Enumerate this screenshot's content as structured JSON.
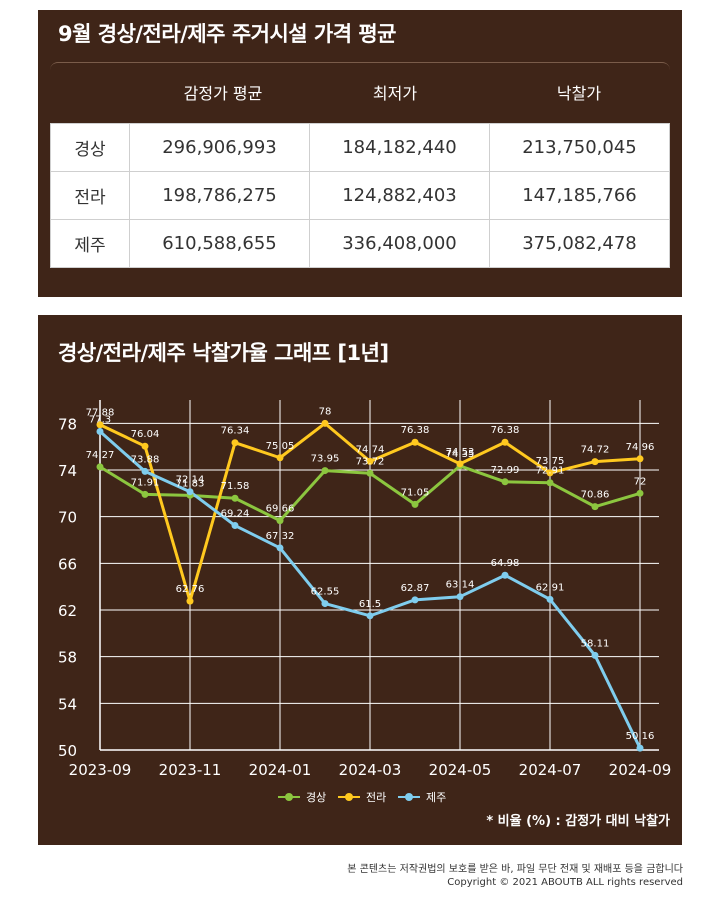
{
  "price_table": {
    "title": "9월 경상/전라/제주 주거시설 가격 평균",
    "headers": [
      "감정가 평균",
      "최저가",
      "낙찰가"
    ],
    "rows": [
      {
        "region": "경상",
        "cells": [
          "296,906,993",
          "184,182,440",
          "213,750,045"
        ]
      },
      {
        "region": "전라",
        "cells": [
          "198,786,275",
          "124,882,403",
          "147,185,766"
        ]
      },
      {
        "region": "제주",
        "cells": [
          "610,588,655",
          "336,408,000",
          "375,082,478"
        ]
      }
    ]
  },
  "chart_data": {
    "type": "line",
    "title": "경상/전라/제주 낙찰가율 그래프 [1년]",
    "xlabel": "",
    "ylabel": "",
    "x": [
      "2023-09",
      "2023-10",
      "2023-11",
      "2023-12",
      "2024-01",
      "2024-02",
      "2024-03",
      "2024-04",
      "2024-05",
      "2024-06",
      "2024-07",
      "2024-08",
      "2024-09"
    ],
    "x_tick_labels": [
      "2023-09",
      "2023-11",
      "2024-01",
      "2024-03",
      "2024-05",
      "2024-07",
      "2024-09"
    ],
    "y_ticks": [
      50,
      54,
      58,
      62,
      66,
      70,
      74,
      78
    ],
    "ylim": [
      50,
      80
    ],
    "grid": true,
    "legend_position": "bottom",
    "series": [
      {
        "name": "경상",
        "color": "#8cc63f",
        "values": [
          74.27,
          71.91,
          71.83,
          71.58,
          69.66,
          73.95,
          73.72,
          71.05,
          74.35,
          72.99,
          72.91,
          70.86,
          72
        ],
        "labels": [
          "74.27",
          "71.91",
          "71.83",
          "71.58",
          "69.66",
          "73.95",
          "73.72",
          "71.05",
          "74.35",
          "72.99",
          "72.91",
          "70.86",
          "72"
        ]
      },
      {
        "name": "전라",
        "color": "#ffc91f",
        "values": [
          77.88,
          76.04,
          62.76,
          76.34,
          75.05,
          78,
          74.74,
          76.38,
          74.53,
          76.38,
          73.75,
          74.72,
          74.96
        ],
        "labels": [
          "77.88",
          "76.04",
          "62.76",
          "76.34",
          "75.05",
          "78",
          "74.74",
          "76.38",
          "74.53",
          "76.38",
          "73.75",
          "74.72",
          "74.96"
        ]
      },
      {
        "name": "제주",
        "color": "#7fcdee",
        "values": [
          77.3,
          73.88,
          72.14,
          69.24,
          67.32,
          62.55,
          61.5,
          62.87,
          63.14,
          64.98,
          62.91,
          58.11,
          50.16
        ],
        "labels": [
          "77.3",
          "73.88",
          "72.14",
          "69.24",
          "67.32",
          "62.55",
          "61.5",
          "62.87",
          "63.14",
          "64.98",
          "62.91",
          "58.11",
          "50.16"
        ]
      }
    ]
  },
  "footnote": "* 비율 (%) : 감정가 대비 낙찰가",
  "copyright_lines": [
    "본 콘텐츠는 저작권법의 보호를 받은 바, 파일 무단 전재 및 재배포 등을 금합니다",
    "Copyright © 2021 ABOUTB ALL rights reserved"
  ]
}
